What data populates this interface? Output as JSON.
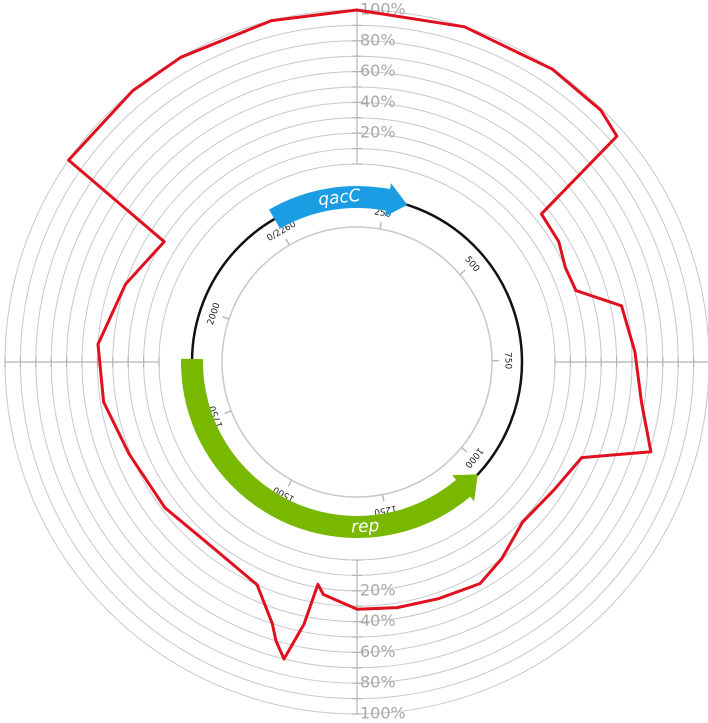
{
  "chart_data": {
    "type": "polar",
    "xlim": [
      0,
      2260
    ],
    "xticks": [
      {
        "value": 0,
        "label": "0/2260"
      },
      250,
      500,
      750,
      1000,
      1250,
      1500,
      1750,
      2000
    ],
    "rlim": [
      0,
      100
    ],
    "rticks": [
      {
        "value": 20,
        "label": "20%"
      },
      {
        "value": 40,
        "label": "40%"
      },
      {
        "value": 60,
        "label": "60%"
      },
      {
        "value": 80,
        "label": "80%"
      },
      {
        "value": 100,
        "label": "100%"
      }
    ],
    "rminorticks": [
      0,
      10,
      30,
      50,
      70,
      90
    ],
    "grid": true,
    "features": [
      {
        "name": "qacC",
        "start": 0,
        "end": 300,
        "strand": "+",
        "color": "#1a9de2"
      },
      {
        "name": "rep",
        "start": 1023,
        "end": 1890,
        "strand": "-",
        "color": "#78b800"
      }
    ],
    "coverage": {
      "color": "#e0101e",
      "x": [
        0,
        100,
        188,
        300,
        400,
        465,
        496,
        510,
        560,
        600,
        640,
        678,
        740,
        804,
        860,
        898,
        960,
        1030,
        1090,
        1136,
        1199,
        1260,
        1318,
        1370,
        1381,
        1390,
        1405,
        1420,
        1431,
        1470,
        1557,
        1650,
        1745,
        1827,
        1908,
        2000,
        2084,
        2103,
        2200
      ],
      "values": [
        100,
        100,
        100,
        100,
        100,
        99,
        95,
        25,
        24,
        20,
        21,
        47,
        52,
        58,
        71,
        30,
        24,
        21,
        30,
        36,
        34,
        33,
        32,
        24,
        18,
        45,
        70,
        60,
        50,
        30,
        24,
        28,
        31,
        38,
        40,
        30,
        19,
        100,
        100
      ]
    }
  }
}
